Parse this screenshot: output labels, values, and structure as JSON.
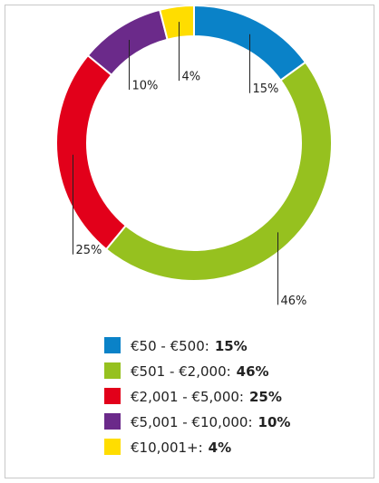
{
  "chart_data": {
    "type": "pie",
    "categories": [
      "€50 - €500:",
      "€501 - €2,000:",
      "€2,001 - €5,000:",
      "€5,001 - €10,000:",
      "€10,001+:"
    ],
    "values": [
      15,
      46,
      25,
      10,
      4
    ],
    "value_labels": [
      "15%",
      "46%",
      "25%",
      "10%",
      "4%"
    ],
    "colors": [
      "#0a82c8",
      "#96c11f",
      "#e2001a",
      "#6b2a8a",
      "#ffdd00"
    ]
  }
}
